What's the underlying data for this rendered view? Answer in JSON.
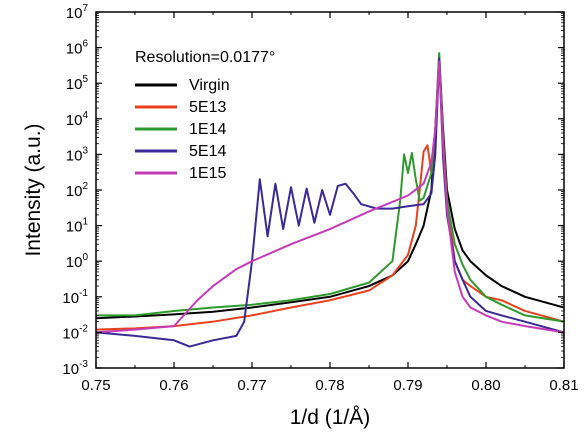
{
  "chart_data": {
    "type": "line",
    "title": "",
    "xlabel": "1/d (1/Å)",
    "ylabel": "Intensity (a.u.)",
    "xlim": [
      0.75,
      0.81
    ],
    "ylim_log10": [
      -3,
      7
    ],
    "y_scale": "log",
    "x_ticks": [
      "0.75",
      "0.76",
      "0.77",
      "0.78",
      "0.79",
      "0.80",
      "0.81"
    ],
    "y_tick_exponents": [
      "-3",
      "-2",
      "-1",
      "0",
      "1",
      "2",
      "3",
      "4",
      "5",
      "6",
      "7"
    ],
    "y_tick_base": "10",
    "annotation": "Resolution=0.0177°",
    "legend_position": "top-left",
    "grid": false,
    "series": [
      {
        "name": "Virgin",
        "color": "#000000",
        "x": [
          0.75,
          0.755,
          0.76,
          0.765,
          0.77,
          0.775,
          0.78,
          0.785,
          0.788,
          0.79,
          0.791,
          0.792,
          0.793,
          0.7935,
          0.794,
          0.7945,
          0.795,
          0.796,
          0.797,
          0.798,
          0.8,
          0.802,
          0.805,
          0.81
        ],
        "y": [
          0.025,
          0.028,
          0.032,
          0.038,
          0.05,
          0.07,
          0.1,
          0.2,
          0.4,
          1.0,
          3.0,
          10,
          100,
          5000,
          600000,
          5000,
          100,
          8,
          2,
          1,
          0.4,
          0.2,
          0.1,
          0.05
        ]
      },
      {
        "name": "5E13",
        "color": "#e8411e",
        "x": [
          0.75,
          0.755,
          0.76,
          0.765,
          0.77,
          0.775,
          0.78,
          0.785,
          0.788,
          0.79,
          0.791,
          0.7915,
          0.792,
          0.7925,
          0.793,
          0.7935,
          0.794,
          0.7945,
          0.795,
          0.796,
          0.797,
          0.798,
          0.8,
          0.802,
          0.805,
          0.81
        ],
        "y": [
          0.012,
          0.013,
          0.015,
          0.02,
          0.03,
          0.05,
          0.08,
          0.15,
          0.4,
          1.5,
          10,
          100,
          1200,
          1800,
          300,
          5000,
          500000,
          3000,
          50,
          1,
          0.3,
          0.2,
          0.1,
          0.08,
          0.04,
          0.02
        ]
      },
      {
        "name": "1E14",
        "color": "#2e9a2e",
        "x": [
          0.75,
          0.755,
          0.76,
          0.765,
          0.77,
          0.775,
          0.78,
          0.785,
          0.788,
          0.789,
          0.7895,
          0.79,
          0.7905,
          0.791,
          0.7915,
          0.792,
          0.793,
          0.7935,
          0.794,
          0.7945,
          0.795,
          0.796,
          0.797,
          0.798,
          0.8,
          0.802,
          0.805,
          0.81
        ],
        "y": [
          0.03,
          0.03,
          0.04,
          0.05,
          0.06,
          0.08,
          0.12,
          0.25,
          1.0,
          50,
          1000,
          300,
          1100,
          200,
          50,
          60,
          300,
          5000,
          700000,
          2000,
          50,
          3,
          0.8,
          0.3,
          0.1,
          0.06,
          0.03,
          0.02
        ]
      },
      {
        "name": "5E14",
        "color": "#3a2a96",
        "x": [
          0.75,
          0.755,
          0.76,
          0.762,
          0.765,
          0.768,
          0.769,
          0.77,
          0.771,
          0.772,
          0.773,
          0.774,
          0.775,
          0.776,
          0.777,
          0.778,
          0.779,
          0.78,
          0.781,
          0.782,
          0.783,
          0.784,
          0.786,
          0.788,
          0.79,
          0.792,
          0.793,
          0.7935,
          0.794,
          0.7945,
          0.795,
          0.796,
          0.797,
          0.798,
          0.8,
          0.802,
          0.805,
          0.81
        ],
        "y": [
          0.01,
          0.008,
          0.006,
          0.004,
          0.006,
          0.008,
          0.02,
          1.0,
          200,
          5,
          150,
          8,
          120,
          10,
          110,
          12,
          100,
          20,
          130,
          150,
          80,
          40,
          30,
          30,
          35,
          40,
          80,
          1000,
          500000,
          800,
          20,
          1,
          0.3,
          0.1,
          0.04,
          0.03,
          0.02,
          0.01
        ]
      },
      {
        "name": "1E15",
        "color": "#c63ab8",
        "x": [
          0.75,
          0.755,
          0.76,
          0.763,
          0.765,
          0.768,
          0.77,
          0.775,
          0.78,
          0.785,
          0.79,
          0.792,
          0.793,
          0.7935,
          0.794,
          0.7945,
          0.795,
          0.796,
          0.797,
          0.798,
          0.8,
          0.802,
          0.805,
          0.81
        ],
        "y": [
          0.01,
          0.012,
          0.015,
          0.08,
          0.2,
          0.6,
          1.0,
          3,
          8,
          25,
          70,
          150,
          600,
          5000,
          400000,
          2000,
          30,
          0.5,
          0.1,
          0.05,
          0.03,
          0.02,
          0.015,
          0.01
        ]
      }
    ]
  }
}
